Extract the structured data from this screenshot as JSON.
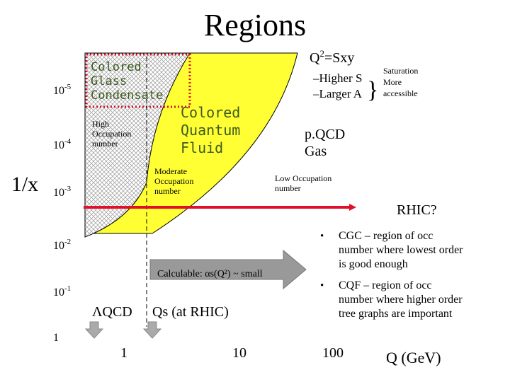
{
  "title": "Regions",
  "y_axis": {
    "label": "1/x",
    "ticks": [
      {
        "base": "10",
        "exp": "-5"
      },
      {
        "base": "10",
        "exp": "-4"
      },
      {
        "base": "10",
        "exp": "-3"
      },
      {
        "base": "10",
        "exp": "-2"
      },
      {
        "base": "10",
        "exp": "-1"
      },
      {
        "base": "1",
        "exp": ""
      }
    ]
  },
  "x_axis": {
    "label": "Q (GeV)",
    "ticks": [
      "1",
      "10",
      "100"
    ]
  },
  "regions": {
    "cgc": [
      "Colored",
      "Glass",
      "Condensate"
    ],
    "cqf": [
      "Colored",
      "Quantum",
      "Fluid"
    ],
    "pqcd": [
      "p.QCD",
      "Gas"
    ],
    "high_occ": [
      "High",
      "Occupation",
      "number"
    ],
    "moderate_occ": [
      "Moderate",
      "Occupation",
      "number"
    ],
    "low_occ": [
      "Low Occupation",
      "number"
    ]
  },
  "scaling": {
    "q2": "Q",
    "q2_exp": "2",
    "q2_rest": "=Sxy",
    "lines": [
      "–Higher S",
      "–Larger A"
    ],
    "note": [
      "Saturation",
      "More",
      "accessible"
    ]
  },
  "rhic": "RHIC?",
  "calculable": "Calculable: αs(Q²) ~ small",
  "lambda_qcd": "ΛQCD",
  "qs": "Qs (at RHIC)",
  "bullets": [
    [
      "CGC – region of occ",
      "number where lowest order",
      "is good enough"
    ],
    [
      "CQF – region of occ",
      "number where higher order",
      "tree graphs are important"
    ]
  ]
}
